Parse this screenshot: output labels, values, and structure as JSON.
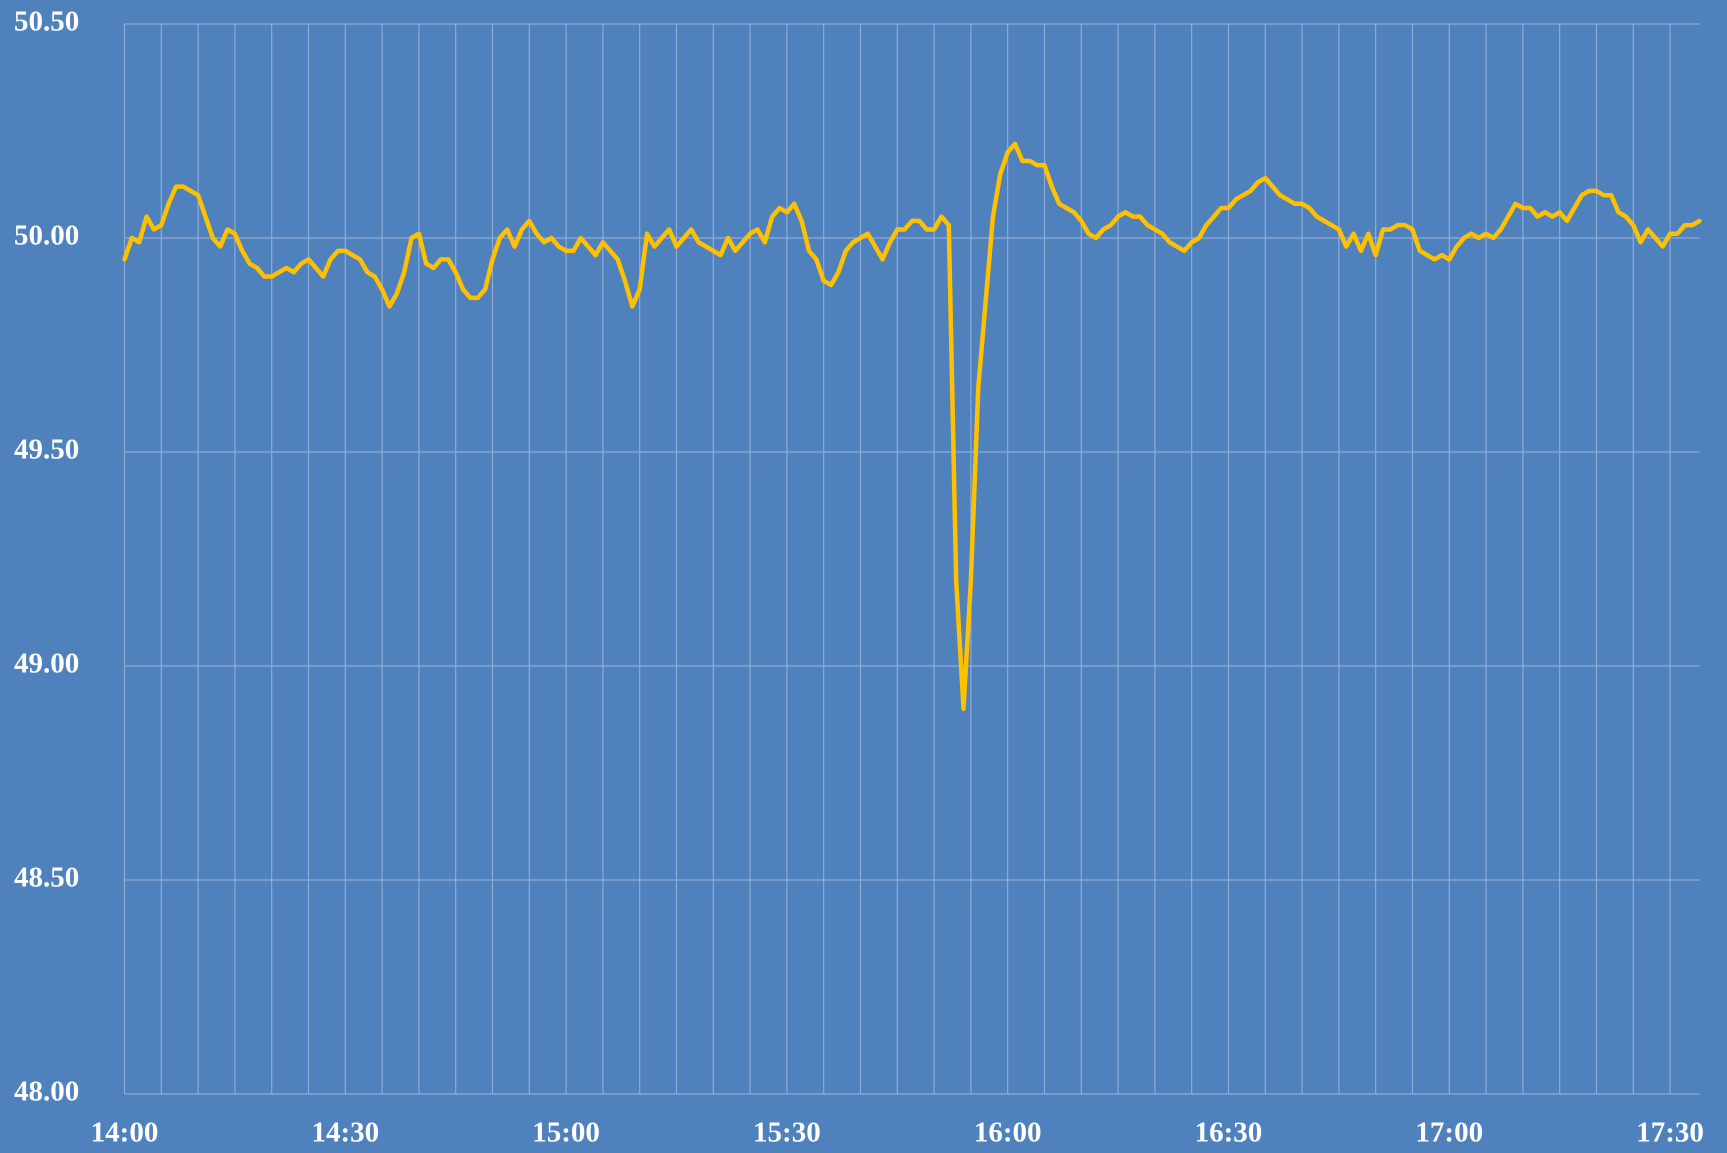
{
  "chart_data": {
    "type": "line",
    "x": [
      "14:00",
      "14:01",
      "14:02",
      "14:03",
      "14:04",
      "14:05",
      "14:06",
      "14:07",
      "14:08",
      "14:09",
      "14:10",
      "14:11",
      "14:12",
      "14:13",
      "14:14",
      "14:15",
      "14:16",
      "14:17",
      "14:18",
      "14:19",
      "14:20",
      "14:21",
      "14:22",
      "14:23",
      "14:24",
      "14:25",
      "14:26",
      "14:27",
      "14:28",
      "14:29",
      "14:30",
      "14:31",
      "14:32",
      "14:33",
      "14:34",
      "14:35",
      "14:36",
      "14:37",
      "14:38",
      "14:39",
      "14:40",
      "14:41",
      "14:42",
      "14:43",
      "14:44",
      "14:45",
      "14:46",
      "14:47",
      "14:48",
      "14:49",
      "14:50",
      "14:51",
      "14:52",
      "14:53",
      "14:54",
      "14:55",
      "14:56",
      "14:57",
      "14:58",
      "14:59",
      "15:00",
      "15:01",
      "15:02",
      "15:03",
      "15:04",
      "15:05",
      "15:06",
      "15:07",
      "15:08",
      "15:09",
      "15:10",
      "15:11",
      "15:12",
      "15:13",
      "15:14",
      "15:15",
      "15:16",
      "15:17",
      "15:18",
      "15:19",
      "15:20",
      "15:21",
      "15:22",
      "15:23",
      "15:24",
      "15:25",
      "15:26",
      "15:27",
      "15:28",
      "15:29",
      "15:30",
      "15:31",
      "15:32",
      "15:33",
      "15:34",
      "15:35",
      "15:36",
      "15:37",
      "15:38",
      "15:39",
      "15:40",
      "15:41",
      "15:42",
      "15:43",
      "15:44",
      "15:45",
      "15:46",
      "15:47",
      "15:48",
      "15:49",
      "15:50",
      "15:51",
      "15:52",
      "15:53",
      "15:54",
      "15:55",
      "15:56",
      "15:57",
      "15:58",
      "15:59",
      "16:00",
      "16:01",
      "16:02",
      "16:03",
      "16:04",
      "16:05",
      "16:06",
      "16:07",
      "16:08",
      "16:09",
      "16:10",
      "16:11",
      "16:12",
      "16:13",
      "16:14",
      "16:15",
      "16:16",
      "16:17",
      "16:18",
      "16:19",
      "16:20",
      "16:21",
      "16:22",
      "16:23",
      "16:24",
      "16:25",
      "16:26",
      "16:27",
      "16:28",
      "16:29",
      "16:30",
      "16:31",
      "16:32",
      "16:33",
      "16:34",
      "16:35",
      "16:36",
      "16:37",
      "16:38",
      "16:39",
      "16:40",
      "16:41",
      "16:42",
      "16:43",
      "16:44",
      "16:45",
      "16:46",
      "16:47",
      "16:48",
      "16:49",
      "16:50",
      "16:51",
      "16:52",
      "16:53",
      "16:54",
      "16:55",
      "16:56",
      "16:57",
      "16:58",
      "16:59",
      "17:00",
      "17:01",
      "17:02",
      "17:03",
      "17:04",
      "17:05",
      "17:06",
      "17:07",
      "17:08",
      "17:09",
      "17:10",
      "17:11",
      "17:12",
      "17:13",
      "17:14",
      "17:15",
      "17:16",
      "17:17",
      "17:18",
      "17:19",
      "17:20",
      "17:21",
      "17:22",
      "17:23",
      "17:24",
      "17:25",
      "17:26",
      "17:27",
      "17:28",
      "17:29",
      "17:30",
      "17:31",
      "17:32",
      "17:33",
      "17:34"
    ],
    "values": [
      49.95,
      50.0,
      49.99,
      50.05,
      50.02,
      50.03,
      50.08,
      50.12,
      50.12,
      50.11,
      50.1,
      50.05,
      50.0,
      49.98,
      50.02,
      50.01,
      49.97,
      49.94,
      49.93,
      49.91,
      49.91,
      49.92,
      49.93,
      49.92,
      49.94,
      49.95,
      49.93,
      49.91,
      49.95,
      49.97,
      49.97,
      49.96,
      49.95,
      49.92,
      49.91,
      49.88,
      49.84,
      49.87,
      49.92,
      50.0,
      50.01,
      49.94,
      49.93,
      49.95,
      49.95,
      49.92,
      49.88,
      49.86,
      49.86,
      49.88,
      49.95,
      50.0,
      50.02,
      49.98,
      50.02,
      50.04,
      50.01,
      49.99,
      50.0,
      49.98,
      49.97,
      49.97,
      50.0,
      49.98,
      49.96,
      49.99,
      49.97,
      49.95,
      49.9,
      49.84,
      49.88,
      50.01,
      49.98,
      50.0,
      50.02,
      49.98,
      50.0,
      50.02,
      49.99,
      49.98,
      49.97,
      49.96,
      50.0,
      49.97,
      49.99,
      50.01,
      50.02,
      49.99,
      50.05,
      50.07,
      50.06,
      50.08,
      50.04,
      49.97,
      49.95,
      49.9,
      49.89,
      49.92,
      49.97,
      49.99,
      50.0,
      50.01,
      49.98,
      49.95,
      49.99,
      50.02,
      50.02,
      50.04,
      50.04,
      50.02,
      50.02,
      50.05,
      50.03,
      49.2,
      48.9,
      49.2,
      49.65,
      49.85,
      50.05,
      50.15,
      50.2,
      50.22,
      50.18,
      50.18,
      50.17,
      50.17,
      50.12,
      50.08,
      50.07,
      50.06,
      50.04,
      50.01,
      50.0,
      50.02,
      50.03,
      50.05,
      50.06,
      50.05,
      50.05,
      50.03,
      50.02,
      50.01,
      49.99,
      49.98,
      49.97,
      49.99,
      50.0,
      50.03,
      50.05,
      50.07,
      50.07,
      50.09,
      50.1,
      50.11,
      50.13,
      50.14,
      50.12,
      50.1,
      50.09,
      50.08,
      50.08,
      50.07,
      50.05,
      50.04,
      50.03,
      50.02,
      49.98,
      50.01,
      49.97,
      50.01,
      49.96,
      50.02,
      50.02,
      50.03,
      50.03,
      50.02,
      49.97,
      49.96,
      49.95,
      49.96,
      49.95,
      49.98,
      50.0,
      50.01,
      50.0,
      50.01,
      50.0,
      50.02,
      50.05,
      50.08,
      50.07,
      50.07,
      50.05,
      50.06,
      50.05,
      50.06,
      50.04,
      50.07,
      50.1,
      50.11,
      50.11,
      50.1,
      50.1,
      50.06,
      50.05,
      50.03,
      49.99,
      50.02,
      50.0,
      49.98,
      50.01,
      50.01,
      50.03,
      50.03,
      50.04
    ],
    "color": "#ffc000",
    "xlim": [
      "14:00",
      "17:34"
    ],
    "xticks": [
      "14:00",
      "14:30",
      "15:00",
      "15:30",
      "16:00",
      "16:30",
      "17:00",
      "17:30"
    ],
    "xgrid": [
      "14:00",
      "14:05",
      "14:10",
      "14:15",
      "14:20",
      "14:25",
      "14:30",
      "14:35",
      "14:40",
      "14:45",
      "14:50",
      "14:55",
      "15:00",
      "15:05",
      "15:10",
      "15:15",
      "15:20",
      "15:25",
      "15:30",
      "15:35",
      "15:40",
      "15:45",
      "15:50",
      "15:55",
      "16:00",
      "16:05",
      "16:10",
      "16:15",
      "16:20",
      "16:25",
      "16:30",
      "16:35",
      "16:40",
      "16:45",
      "16:50",
      "16:55",
      "17:00",
      "17:05",
      "17:10",
      "17:15",
      "17:20",
      "17:25",
      "17:30"
    ],
    "ylim": [
      48,
      50.5
    ],
    "yticks": [
      {
        "value": 48,
        "label": "48.00"
      },
      {
        "value": 48.5,
        "label": "48.50"
      },
      {
        "value": 49,
        "label": "49.00"
      },
      {
        "value": 49.5,
        "label": "49.50"
      },
      {
        "value": 50,
        "label": "50.00"
      },
      {
        "value": 50.5,
        "label": "50.50"
      }
    ],
    "grid": true
  }
}
